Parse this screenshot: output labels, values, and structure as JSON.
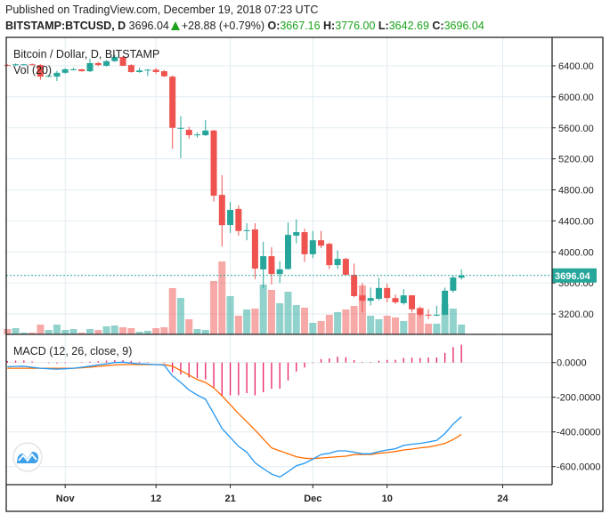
{
  "header": {
    "published": "Published on TradingView.com, December 19, 2018 07:23 UTC",
    "symbol": "BITSTAMP:BTCUSD, D",
    "last": "3696.04",
    "change": "+28.88 (+0.79%)",
    "o_label": "O:",
    "o": "3667.16",
    "h_label": "H:",
    "h": "3776.00",
    "l_label": "L:",
    "l": "3642.69",
    "c_label": "C:",
    "c": "3696.04"
  },
  "colors": {
    "up": "#26a69a",
    "down": "#ef5350",
    "macd": "#2196f3",
    "signal": "#ff6d00",
    "histogram": "#e91e63",
    "grid": "#e1ecf2",
    "change": "#1aa31a"
  },
  "icons": {
    "change_direction": "triangle-up-icon",
    "logo": "tradingview-cloud-logo-icon"
  },
  "chart_data": {
    "type": "candlestick",
    "title": "Bitcoin / Dollar, D, BITSTAMP",
    "volume_label": "Vol (20)",
    "macd_label": "MACD (12, 26, close, 9)",
    "last_price_label": "3696.04",
    "ylim": [
      2950,
      6700
    ],
    "yticks": [
      "6400.00",
      "6000.00",
      "5600.00",
      "5200.00",
      "4800.00",
      "4400.00",
      "4000.00",
      "3600.00",
      "3200.00"
    ],
    "macd_ylim": [
      -700,
      130
    ],
    "macd_yticks": [
      "0.0000",
      "-200.0000",
      "-400.0000",
      "-600.0000"
    ],
    "xticks": [
      {
        "label": "Nov",
        "date": "2018-11-01"
      },
      {
        "label": "12",
        "date": "2018-11-12"
      },
      {
        "label": "21",
        "date": "2018-11-21"
      },
      {
        "label": "Dec",
        "date": "2018-12-01"
      },
      {
        "label": "10",
        "date": "2018-12-10"
      },
      {
        "label": "24",
        "date": "2018-12-24"
      }
    ],
    "grid": true,
    "candles": [
      {
        "d": "2018-10-25",
        "o": 6410,
        "h": 6420,
        "l": 6395,
        "c": 6405,
        "v": 6
      },
      {
        "d": "2018-10-26",
        "o": 6410,
        "h": 6430,
        "l": 6400,
        "c": 6420,
        "v": 7
      },
      {
        "d": "2018-10-27",
        "o": 6415,
        "h": 6425,
        "l": 6405,
        "c": 6420,
        "v": 2
      },
      {
        "d": "2018-10-28",
        "o": 6420,
        "h": 6430,
        "l": 6405,
        "c": 6415,
        "v": 2
      },
      {
        "d": "2018-10-29",
        "o": 6410,
        "h": 6420,
        "l": 6220,
        "c": 6260,
        "v": 11
      },
      {
        "d": "2018-10-30",
        "o": 6265,
        "h": 6280,
        "l": 6255,
        "c": 6270,
        "v": 5
      },
      {
        "d": "2018-10-31",
        "o": 6260,
        "h": 6335,
        "l": 6205,
        "c": 6310,
        "v": 11
      },
      {
        "d": "2018-11-01",
        "o": 6310,
        "h": 6370,
        "l": 6300,
        "c": 6355,
        "v": 5
      },
      {
        "d": "2018-11-02",
        "o": 6350,
        "h": 6375,
        "l": 6340,
        "c": 6355,
        "v": 6
      },
      {
        "d": "2018-11-03",
        "o": 6355,
        "h": 6360,
        "l": 6325,
        "c": 6330,
        "v": 2
      },
      {
        "d": "2018-11-04",
        "o": 6330,
        "h": 6490,
        "l": 6320,
        "c": 6435,
        "v": 6
      },
      {
        "d": "2018-11-05",
        "o": 6435,
        "h": 6450,
        "l": 6395,
        "c": 6410,
        "v": 5
      },
      {
        "d": "2018-11-06",
        "o": 6400,
        "h": 6475,
        "l": 6390,
        "c": 6460,
        "v": 9
      },
      {
        "d": "2018-11-07",
        "o": 6460,
        "h": 6540,
        "l": 6450,
        "c": 6515,
        "v": 10
      },
      {
        "d": "2018-11-08",
        "o": 6515,
        "h": 6520,
        "l": 6395,
        "c": 6400,
        "v": 8
      },
      {
        "d": "2018-11-09",
        "o": 6410,
        "h": 6420,
        "l": 6310,
        "c": 6320,
        "v": 7
      },
      {
        "d": "2018-11-10",
        "o": 6320,
        "h": 6375,
        "l": 6310,
        "c": 6340,
        "v": 3
      },
      {
        "d": "2018-11-11",
        "o": 6345,
        "h": 6360,
        "l": 6270,
        "c": 6350,
        "v": 4
      },
      {
        "d": "2018-11-12",
        "o": 6350,
        "h": 6370,
        "l": 6300,
        "c": 6320,
        "v": 7
      },
      {
        "d": "2018-11-13",
        "o": 6330,
        "h": 6345,
        "l": 6255,
        "c": 6265,
        "v": 8
      },
      {
        "d": "2018-11-14",
        "o": 6260,
        "h": 6275,
        "l": 5330,
        "c": 5600,
        "v": 52
      },
      {
        "d": "2018-11-15",
        "o": 5600,
        "h": 5750,
        "l": 5210,
        "c": 5600,
        "v": 41
      },
      {
        "d": "2018-11-16",
        "o": 5575,
        "h": 5615,
        "l": 5460,
        "c": 5505,
        "v": 17
      },
      {
        "d": "2018-11-17",
        "o": 5515,
        "h": 5540,
        "l": 5475,
        "c": 5515,
        "v": 6
      },
      {
        "d": "2018-11-18",
        "o": 5505,
        "h": 5700,
        "l": 5495,
        "c": 5565,
        "v": 5
      },
      {
        "d": "2018-11-19",
        "o": 5565,
        "h": 5575,
        "l": 4650,
        "c": 4725,
        "v": 60
      },
      {
        "d": "2018-11-20",
        "o": 4735,
        "h": 4990,
        "l": 4070,
        "c": 4345,
        "v": 82
      },
      {
        "d": "2018-11-21",
        "o": 4347,
        "h": 4645,
        "l": 4245,
        "c": 4542,
        "v": 43
      },
      {
        "d": "2018-11-22",
        "o": 4555,
        "h": 4600,
        "l": 4210,
        "c": 4270,
        "v": 21
      },
      {
        "d": "2018-11-23",
        "o": 4270,
        "h": 4370,
        "l": 4150,
        "c": 4280,
        "v": 28
      },
      {
        "d": "2018-11-24",
        "o": 4290,
        "h": 4370,
        "l": 3650,
        "c": 3785,
        "v": 29
      },
      {
        "d": "2018-11-25",
        "o": 3775,
        "h": 4130,
        "l": 3530,
        "c": 3945,
        "v": 56
      },
      {
        "d": "2018-11-26",
        "o": 3945,
        "h": 4060,
        "l": 3580,
        "c": 3715,
        "v": 50
      },
      {
        "d": "2018-11-27",
        "o": 3715,
        "h": 3880,
        "l": 3600,
        "c": 3775,
        "v": 35
      },
      {
        "d": "2018-11-28",
        "o": 3780,
        "h": 4380,
        "l": 3770,
        "c": 4220,
        "v": 48
      },
      {
        "d": "2018-11-29",
        "o": 4210,
        "h": 4420,
        "l": 4110,
        "c": 4255,
        "v": 33
      },
      {
        "d": "2018-11-30",
        "o": 4255,
        "h": 4300,
        "l": 3870,
        "c": 3970,
        "v": 30
      },
      {
        "d": "2018-12-01",
        "o": 3970,
        "h": 4270,
        "l": 3920,
        "c": 4150,
        "v": 13
      },
      {
        "d": "2018-12-02",
        "o": 4150,
        "h": 4270,
        "l": 4050,
        "c": 4080,
        "v": 15
      },
      {
        "d": "2018-12-03",
        "o": 4105,
        "h": 4120,
        "l": 3780,
        "c": 3830,
        "v": 22
      },
      {
        "d": "2018-12-04",
        "o": 3830,
        "h": 4020,
        "l": 3780,
        "c": 3910,
        "v": 25
      },
      {
        "d": "2018-12-05",
        "o": 3910,
        "h": 3925,
        "l": 3695,
        "c": 3705,
        "v": 28
      },
      {
        "d": "2018-12-06",
        "o": 3705,
        "h": 3850,
        "l": 3415,
        "c": 3430,
        "v": 32
      },
      {
        "d": "2018-12-07",
        "o": 3440,
        "h": 3600,
        "l": 3220,
        "c": 3370,
        "v": 55
      },
      {
        "d": "2018-12-08",
        "o": 3370,
        "h": 3540,
        "l": 3310,
        "c": 3405,
        "v": 21
      },
      {
        "d": "2018-12-09",
        "o": 3395,
        "h": 3665,
        "l": 3375,
        "c": 3535,
        "v": 17
      },
      {
        "d": "2018-12-10",
        "o": 3535,
        "h": 3590,
        "l": 3350,
        "c": 3405,
        "v": 21
      },
      {
        "d": "2018-12-11",
        "o": 3405,
        "h": 3450,
        "l": 3330,
        "c": 3350,
        "v": 19
      },
      {
        "d": "2018-12-12",
        "o": 3340,
        "h": 3520,
        "l": 3320,
        "c": 3440,
        "v": 15
      },
      {
        "d": "2018-12-13",
        "o": 3440,
        "h": 3445,
        "l": 3220,
        "c": 3260,
        "v": 24
      },
      {
        "d": "2018-12-14",
        "o": 3270,
        "h": 3300,
        "l": 3160,
        "c": 3190,
        "v": 30
      },
      {
        "d": "2018-12-15",
        "o": 3190,
        "h": 3260,
        "l": 3135,
        "c": 3180,
        "v": 12
      },
      {
        "d": "2018-12-16",
        "o": 3180,
        "h": 3305,
        "l": 3170,
        "c": 3190,
        "v": 12
      },
      {
        "d": "2018-12-17",
        "o": 3190,
        "h": 3540,
        "l": 3180,
        "c": 3500,
        "v": 34
      },
      {
        "d": "2018-12-18",
        "o": 3500,
        "h": 3700,
        "l": 3475,
        "c": 3670,
        "v": 29
      },
      {
        "d": "2018-12-19",
        "o": 3667.16,
        "h": 3776.0,
        "l": 3642.69,
        "c": 3696.04,
        "v": 11
      }
    ],
    "macd": [
      -24,
      -22,
      -21,
      -27,
      -33,
      -36,
      -38,
      -36,
      -33,
      -27,
      -21,
      -14,
      -7,
      0,
      2,
      -3,
      -7,
      -9,
      -12,
      -15,
      -77,
      -115,
      -158,
      -187,
      -212,
      -295,
      -380,
      -432,
      -483,
      -517,
      -578,
      -612,
      -643,
      -660,
      -629,
      -595,
      -581,
      -557,
      -530,
      -523,
      -509,
      -509,
      -517,
      -526,
      -526,
      -513,
      -504,
      -497,
      -478,
      -471,
      -466,
      -458,
      -449,
      -410,
      -355,
      -312
    ],
    "signal": [
      -33,
      -33,
      -33,
      -33,
      -33,
      -33,
      -33,
      -33,
      -33,
      -30,
      -26,
      -22,
      -18,
      -14,
      -12,
      -12,
      -12,
      -12,
      -12,
      -12,
      -21,
      -46,
      -72,
      -98,
      -115,
      -146,
      -192,
      -243,
      -295,
      -341,
      -389,
      -441,
      -492,
      -509,
      -526,
      -543,
      -552,
      -554,
      -550,
      -547,
      -543,
      -540,
      -531,
      -530,
      -530,
      -523,
      -519,
      -513,
      -504,
      -499,
      -492,
      -487,
      -478,
      -466,
      -444,
      -415
    ]
  }
}
